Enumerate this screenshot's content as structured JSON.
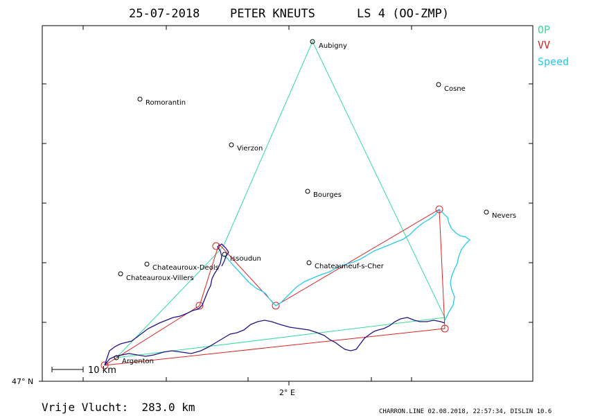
{
  "header": {
    "date": "25-07-2018",
    "pilot": "PETER KNEUTS",
    "glider": "LS 4 (OO-ZMP)"
  },
  "legend": [
    {
      "label": "OP",
      "color": "#33dd99"
    },
    {
      "label": "VV",
      "color": "#dd2222"
    },
    {
      "label": "Speed",
      "color": "#22ccee"
    }
  ],
  "axes": {
    "lat_label": "47° N",
    "lon_label": "2° E"
  },
  "scale_bar": {
    "label": "10 km"
  },
  "cities": [
    {
      "name": "Aubigny"
    },
    {
      "name": "Cosne"
    },
    {
      "name": "Romorantin"
    },
    {
      "name": "Vierzon"
    },
    {
      "name": "Bourges"
    },
    {
      "name": "Nevers"
    },
    {
      "name": "Issoudun"
    },
    {
      "name": "Chateauroux-Deols"
    },
    {
      "name": "Chateauroux-Villers"
    },
    {
      "name": "Chateauneuf-s-Cher"
    },
    {
      "name": "Argenton"
    }
  ],
  "footer": {
    "distance": "Vrije Vlucht:  283.0 km",
    "file_info": "CHARRON.LINE 02.08.2018, 22:57:34, DISLIN 10.6"
  },
  "colors": {
    "op_line": "#33dd99",
    "vv_line": "#dd2222",
    "speed_track": "#22ccee",
    "slow_track": "#221188",
    "frame": "#000000"
  }
}
